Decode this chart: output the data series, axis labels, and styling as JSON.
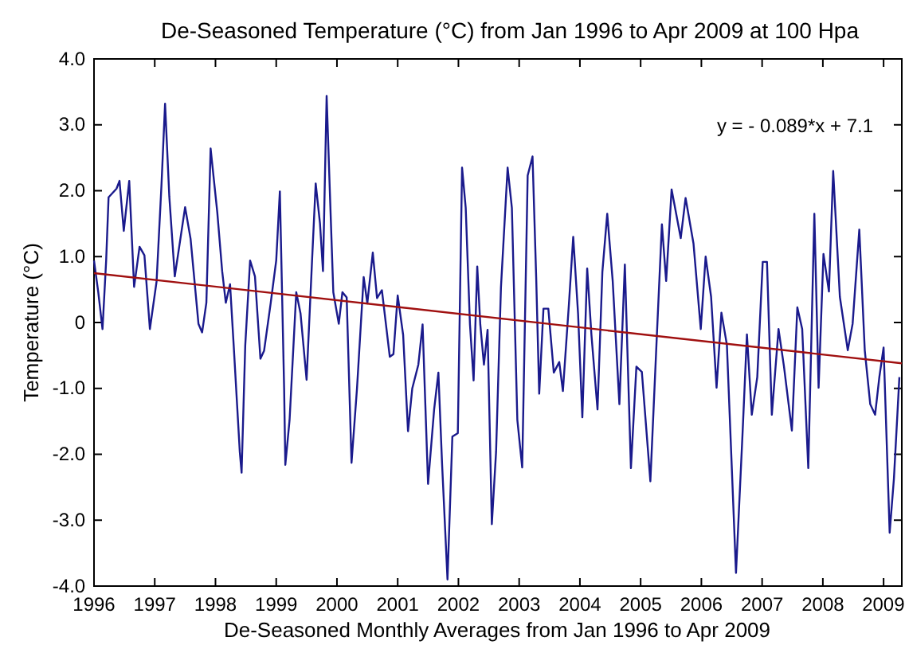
{
  "chart_data": {
    "type": "line",
    "title": "De-Seasoned Temperature (°C) from Jan 1996 to Apr 2009 at 100 Hpa",
    "xlabel": "De-Seasoned Monthly Averages from Jan 1996 to Apr 2009",
    "ylabel": "Temperature (°C)",
    "xlim": [
      1996,
      2009.3
    ],
    "xticks": [
      1996,
      1997,
      1998,
      1999,
      2000,
      2001,
      2002,
      2003,
      2004,
      2005,
      2006,
      2007,
      2008,
      2009
    ],
    "ylim": [
      -4,
      4
    ],
    "yticks": [
      {
        "value": -4,
        "label": "-4.0"
      },
      {
        "value": -3,
        "label": "-3.0"
      },
      {
        "value": -2,
        "label": "-2.0"
      },
      {
        "value": -1,
        "label": "-1.0"
      },
      0,
      {
        "value": 1,
        "label": "1.0"
      },
      {
        "value": 2,
        "label": "2.0"
      },
      {
        "value": 3,
        "label": "3.0"
      },
      {
        "value": 4,
        "label": "4.0"
      }
    ],
    "grid": false,
    "marker": "none",
    "line_style": "solid",
    "annotations": [
      "y = - 0.089*x + 7.1"
    ],
    "series": [
      {
        "color": "#1a1a8c",
        "x": [
          1996.0,
          1996.07,
          1996.14,
          1996.2,
          1996.24,
          1996.37,
          1996.42,
          1996.49,
          1996.58,
          1996.66,
          1996.75,
          1996.83,
          1996.92,
          1997.03,
          1997.11,
          1997.17,
          1997.24,
          1997.33,
          1997.5,
          1997.59,
          1997.72,
          1997.78,
          1997.85,
          1997.92,
          1998.03,
          1998.11,
          1998.17,
          1998.24,
          1998.3,
          1998.4,
          1998.43,
          1998.49,
          1998.57,
          1998.65,
          1998.74,
          1998.8,
          1998.91,
          1999.0,
          1999.06,
          1999.13,
          1999.15,
          1999.22,
          1999.33,
          1999.4,
          1999.5,
          1999.59,
          1999.65,
          1999.72,
          1999.77,
          1999.83,
          1999.88,
          1999.94,
          2000.03,
          2000.09,
          2000.16,
          2000.24,
          2000.33,
          2000.44,
          2000.5,
          2000.59,
          2000.66,
          2000.74,
          2000.87,
          2000.93,
          2001.0,
          2001.09,
          2001.17,
          2001.24,
          2001.34,
          2001.41,
          2001.5,
          2001.6,
          2001.67,
          2001.73,
          2001.82,
          2001.9,
          2001.99,
          2002.06,
          2002.12,
          2002.19,
          2002.25,
          2002.31,
          2002.36,
          2002.42,
          2002.48,
          2002.55,
          2002.62,
          2002.7,
          2002.81,
          2002.88,
          2002.97,
          2003.05,
          2003.14,
          2003.22,
          2003.28,
          2003.33,
          2003.4,
          2003.48,
          2003.57,
          2003.66,
          2003.72,
          2003.82,
          2003.89,
          2003.97,
          2004.04,
          2004.12,
          2004.19,
          2004.29,
          2004.37,
          2004.45,
          2004.54,
          2004.65,
          2004.74,
          2004.84,
          2004.93,
          2005.02,
          2005.16,
          2005.26,
          2005.35,
          2005.42,
          2005.51,
          2005.66,
          2005.74,
          2005.87,
          2005.99,
          2006.07,
          2006.16,
          2006.25,
          2006.33,
          2006.42,
          2006.57,
          2006.68,
          2006.75,
          2006.83,
          2006.92,
          2007.01,
          2007.08,
          2007.16,
          2007.27,
          2007.36,
          2007.49,
          2007.58,
          2007.66,
          2007.76,
          2007.86,
          2007.93,
          2008.01,
          2008.1,
          2008.17,
          2008.28,
          2008.41,
          2008.49,
          2008.6,
          2008.69,
          2008.78,
          2008.86,
          2008.93,
          2009.0,
          2009.1,
          2009.17,
          2009.26
        ],
        "values": [
          0.94,
          0.46,
          -0.1,
          0.94,
          1.9,
          2.03,
          2.15,
          1.39,
          2.15,
          0.54,
          1.15,
          1.02,
          -0.1,
          0.62,
          2.07,
          3.32,
          1.91,
          0.7,
          1.75,
          1.27,
          -0.02,
          -0.15,
          0.3,
          2.64,
          1.67,
          0.78,
          0.3,
          0.58,
          -0.35,
          -1.96,
          -2.28,
          -0.35,
          0.94,
          0.7,
          -0.55,
          -0.43,
          0.3,
          0.94,
          1.99,
          -0.99,
          -2.16,
          -1.48,
          0.46,
          0.14,
          -0.87,
          0.94,
          2.11,
          1.51,
          0.78,
          3.44,
          2.07,
          0.46,
          -0.02,
          0.46,
          0.38,
          -2.13,
          -1.0,
          0.69,
          0.29,
          1.06,
          0.37,
          0.49,
          -0.52,
          -0.48,
          0.41,
          -0.19,
          -1.65,
          -1.0,
          -0.64,
          -0.03,
          -2.45,
          -1.32,
          -0.76,
          -2.13,
          -3.9,
          -1.73,
          -1.68,
          2.35,
          1.74,
          -0.03,
          -0.88,
          0.85,
          -0.03,
          -0.64,
          -0.11,
          -3.06,
          -1.96,
          0.53,
          2.35,
          1.74,
          -1.48,
          -2.2,
          2.23,
          2.52,
          0.69,
          -1.08,
          0.21,
          0.21,
          -0.76,
          -0.6,
          -1.04,
          0.29,
          1.3,
          0.13,
          -1.44,
          0.82,
          -0.19,
          -1.32,
          0.77,
          1.65,
          0.63,
          -1.24,
          0.88,
          -2.21,
          -0.67,
          -0.75,
          -2.41,
          -0.34,
          1.49,
          0.63,
          2.02,
          1.28,
          1.89,
          1.2,
          -0.1,
          1.0,
          0.39,
          -0.99,
          0.15,
          -0.34,
          -3.8,
          -1.64,
          -0.18,
          -1.4,
          -0.83,
          0.92,
          0.92,
          -1.4,
          -0.1,
          -0.67,
          -1.64,
          0.23,
          -0.1,
          -2.21,
          1.65,
          -0.99,
          1.04,
          0.47,
          2.3,
          0.39,
          -0.42,
          -0.02,
          1.41,
          -0.42,
          -1.24,
          -1.4,
          -0.83,
          -0.38,
          -3.19,
          -2.37,
          -0.83
        ]
      },
      {
        "type": "line",
        "color": "#a01010",
        "x": [
          1996,
          2009.3
        ],
        "values": [
          0.75,
          -0.62
        ]
      }
    ]
  }
}
